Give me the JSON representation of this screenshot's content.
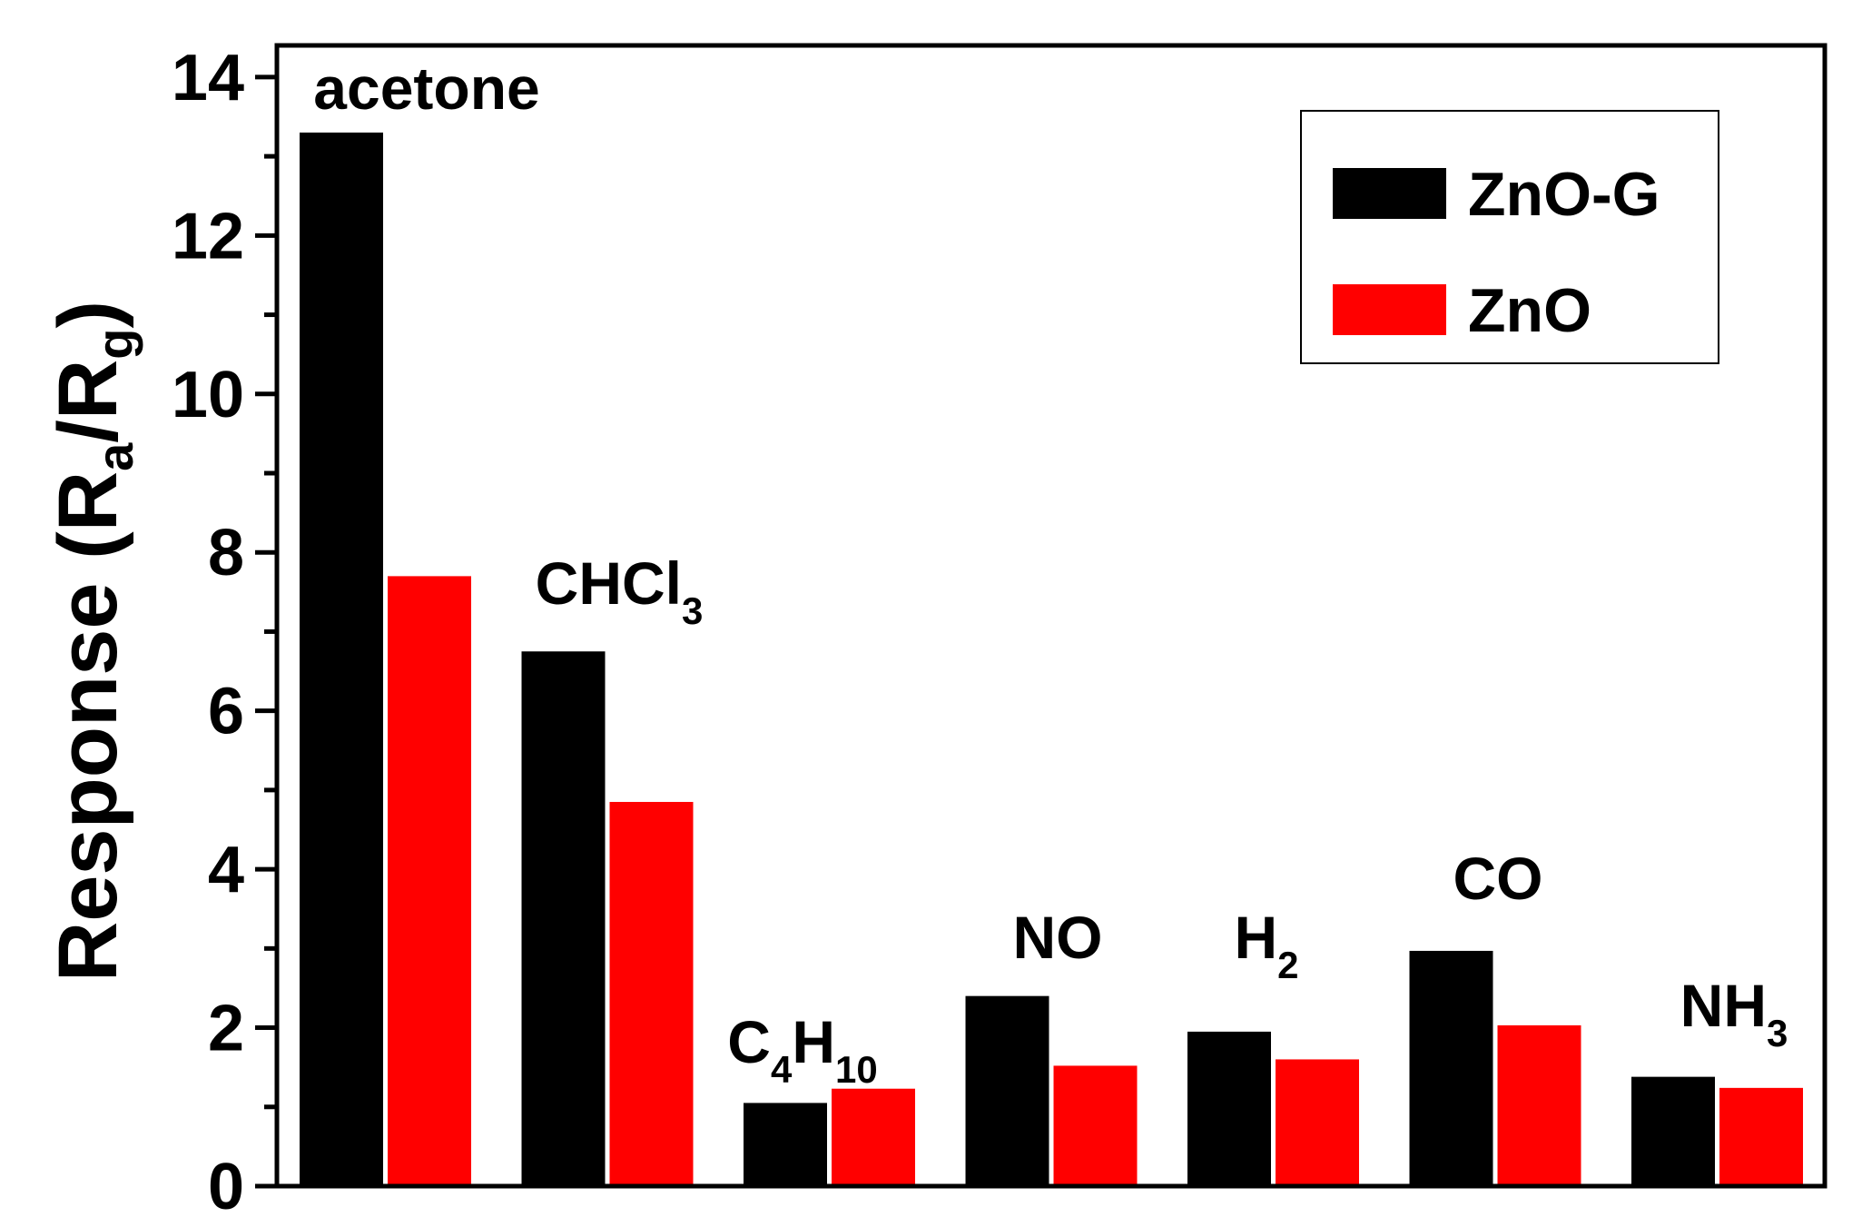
{
  "chart_data": {
    "type": "bar",
    "ylabel": {
      "prefix": "Response (R",
      "sub1": "a",
      "mid": "/R",
      "sub2": "g",
      "suffix": ")"
    },
    "xlabel": "",
    "ylim": [
      0,
      14.4
    ],
    "yticks": [
      0,
      2,
      4,
      6,
      8,
      10,
      12,
      14
    ],
    "grid": false,
    "legend_position": "top-right",
    "categories": [
      {
        "base": "acetone",
        "sub": ""
      },
      {
        "base": "CHCl",
        "sub": "3"
      },
      {
        "parts": [
          {
            "base": "C",
            "sub": "4"
          },
          {
            "base": "H",
            "sub": "10"
          }
        ]
      },
      {
        "base": "NO",
        "sub": ""
      },
      {
        "base": "H",
        "sub": "2"
      },
      {
        "base": "CO",
        "sub": ""
      },
      {
        "base": "NH",
        "sub": "3"
      }
    ],
    "series": [
      {
        "name": "ZnO-G",
        "color": "#000000",
        "values": [
          13.3,
          6.75,
          1.05,
          2.4,
          1.95,
          2.97,
          1.38
        ]
      },
      {
        "name": "ZnO",
        "color": "#ff0000",
        "values": [
          7.7,
          4.85,
          1.23,
          1.52,
          1.6,
          2.03,
          1.24
        ]
      }
    ]
  }
}
